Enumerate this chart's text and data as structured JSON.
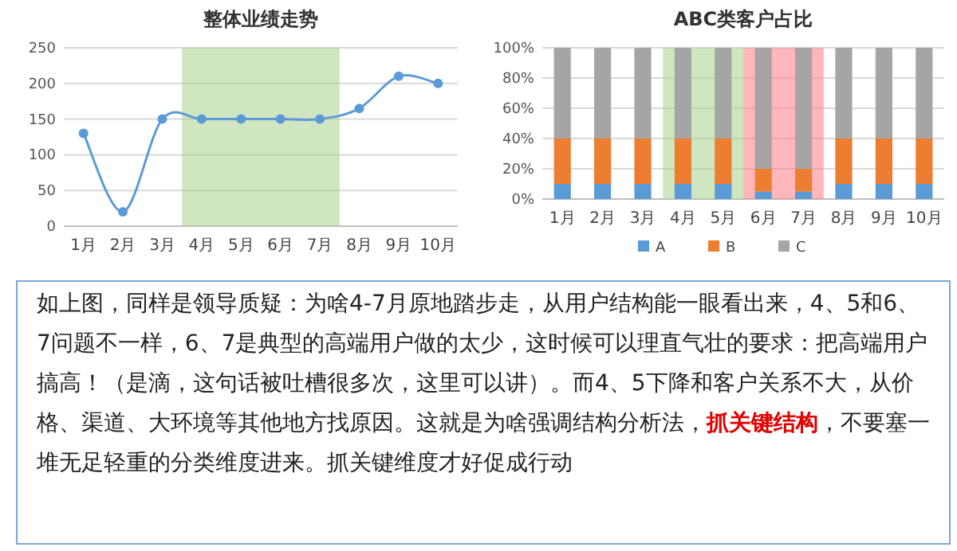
{
  "chart_data": [
    {
      "type": "line",
      "title": "整体业绩走势",
      "categories": [
        "1月",
        "2月",
        "3月",
        "4月",
        "5月",
        "6月",
        "7月",
        "8月",
        "9月",
        "10月"
      ],
      "series": [
        {
          "color": "#5b9bd5",
          "values": [
            130,
            20,
            150,
            150,
            150,
            150,
            150,
            165,
            210,
            200
          ]
        }
      ],
      "ylim": [
        0,
        250
      ],
      "yticks": [
        0,
        50,
        100,
        150,
        200,
        250
      ],
      "grid": "y",
      "marker": "circle",
      "legend": false,
      "bands": [
        {
          "axis": "x",
          "from": "4月",
          "to": "7月",
          "color": "#a9d18e"
        }
      ]
    },
    {
      "type": "bar",
      "stacked": true,
      "title": "ABC类客户占比",
      "categories": [
        "1月",
        "2月",
        "3月",
        "4月",
        "5月",
        "6月",
        "7月",
        "8月",
        "9月",
        "10月"
      ],
      "series": [
        {
          "name": "A",
          "color": "#5b9bd5",
          "values": [
            10,
            10,
            10,
            10,
            10,
            5,
            5,
            10,
            10,
            10
          ]
        },
        {
          "name": "B",
          "color": "#ed7d31",
          "values": [
            30,
            30,
            30,
            30,
            30,
            15,
            15,
            30,
            30,
            30
          ]
        },
        {
          "name": "C",
          "color": "#a5a5a5",
          "values": [
            60,
            60,
            60,
            60,
            60,
            80,
            80,
            60,
            60,
            60
          ]
        }
      ],
      "ylim": [
        0,
        100
      ],
      "yticks": [
        {
          "value": 0,
          "label": "0%"
        },
        {
          "value": 20,
          "label": "20%"
        },
        {
          "value": 40,
          "label": "40%"
        },
        {
          "value": 60,
          "label": "60%"
        },
        {
          "value": 80,
          "label": "80%"
        },
        {
          "value": 100,
          "label": "100%"
        }
      ],
      "grid": "y",
      "legend": "bottom",
      "bands": [
        {
          "axis": "x",
          "from": "4月",
          "to": "5月",
          "color": "#a9d18e"
        },
        {
          "axis": "x",
          "from": "6月",
          "to": "7月",
          "color": "#ff7c80"
        }
      ]
    },
    {
      "type": "other",
      "annotations": [
        "如上图，同样是领导质疑：为啥4-7月原地踏步走，从用户结构能一眼看出来，4、5和6、7问题不一样，6、7是典型的高端用户做的太少，这时候可以理直气壮的要求：把高端用户搞高！（是滴，这句话被吐槽很多次，这里可以讲）。而4、5下降和客户关系不大，从价格、渠道、大环境等其他地方找原因。这就是为啥强调结构分析法，",
        "抓关键结构",
        "，不要塞一堆无足轻重的分类维度进来。抓关键维度才好促成行动"
      ]
    }
  ]
}
